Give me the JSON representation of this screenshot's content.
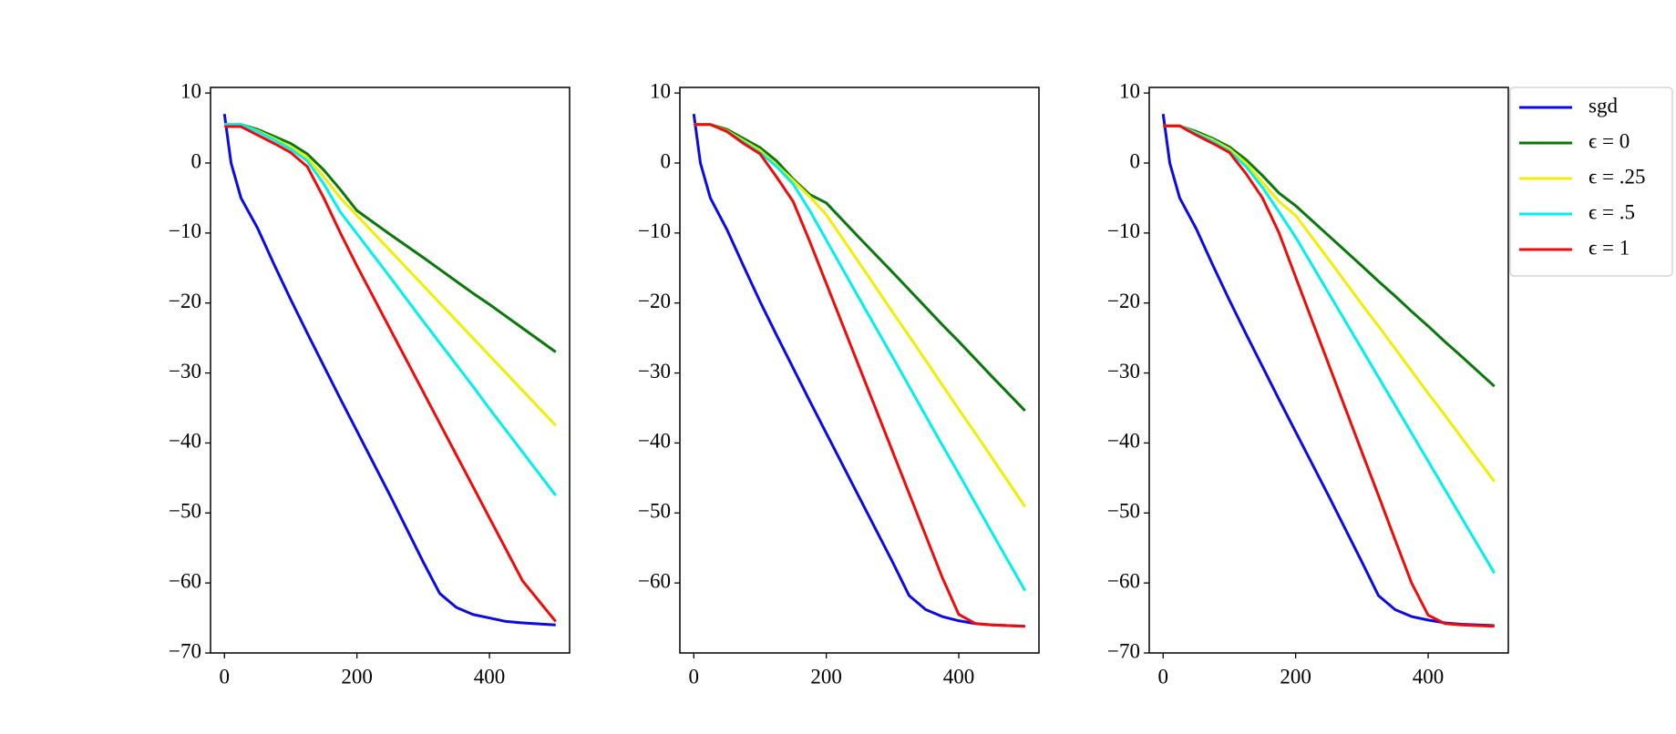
{
  "chart_data": [
    {
      "type": "line",
      "x": [
        0,
        10,
        25,
        50,
        75,
        100,
        125,
        150,
        175,
        200,
        250,
        300,
        325,
        350,
        375,
        400,
        425,
        450,
        500
      ],
      "series": [
        {
          "color": "#0a0ae6",
          "values": [
            7,
            0,
            -5,
            -9.3,
            -14.5,
            -19.5,
            -24.3,
            -29,
            -33.7,
            -38.3,
            -47.5,
            -57,
            -61.5,
            -63.5,
            -64.5,
            -65,
            -65.5,
            -65.7,
            -66
          ]
        },
        {
          "color": "#087808",
          "values": [
            5.5,
            5.5,
            5.5,
            4.8,
            3.8,
            2.8,
            1.3,
            -1,
            -3.8,
            -6.8,
            -10.2,
            -13.5,
            -15.2,
            -16.9,
            -18.6,
            -20.2,
            -21.9,
            -23.6,
            -27
          ]
        },
        {
          "color": "#f2ee00",
          "values": [
            5.5,
            5.5,
            5.5,
            4.6,
            3.5,
            2.3,
            0.8,
            -2,
            -5,
            -7.5,
            -12.5,
            -17.5,
            -20,
            -22.5,
            -25,
            -27.5,
            -30,
            -32.5,
            -37.5
          ]
        },
        {
          "color": "#00f0f0",
          "values": [
            5.5,
            5.5,
            5.5,
            4.5,
            3.3,
            2,
            0.3,
            -3,
            -7,
            -10.1,
            -16.3,
            -22.6,
            -25.7,
            -28.8,
            -31.9,
            -35.1,
            -38.2,
            -41.3,
            -47.5
          ]
        },
        {
          "color": "#f00a0a",
          "values": [
            5.2,
            5.2,
            5.2,
            4,
            2.8,
            1.5,
            -0.5,
            -5,
            -10,
            -14.7,
            -23.7,
            -32.7,
            -37.2,
            -41.7,
            -46.2,
            -50.7,
            -55.2,
            -59.7,
            -65.5
          ]
        }
      ],
      "xlim": [
        -21,
        521
      ],
      "ylim": [
        -70,
        10.8
      ],
      "xticks": [
        0,
        200,
        400
      ],
      "yticks": [
        10,
        0,
        {
          "value": -10,
          "label": "−10"
        },
        {
          "value": -20,
          "label": "−20"
        },
        {
          "value": -30,
          "label": "−30"
        },
        {
          "value": -40,
          "label": "−40"
        },
        {
          "value": -50,
          "label": "−50"
        },
        {
          "value": -60,
          "label": "−60"
        },
        {
          "value": -70,
          "label": "−70"
        }
      ]
    },
    {
      "type": "line",
      "x": [
        0,
        10,
        25,
        50,
        75,
        100,
        125,
        150,
        175,
        200,
        250,
        300,
        325,
        350,
        375,
        400,
        425,
        450,
        500
      ],
      "series": [
        {
          "color": "#0a0ae6",
          "values": [
            7,
            0,
            -5,
            -9.5,
            -14.7,
            -19.8,
            -24.6,
            -29.3,
            -34,
            -38.6,
            -47.8,
            -57,
            -61.8,
            -63.8,
            -64.8,
            -65.4,
            -65.8,
            -66,
            -66.2
          ]
        },
        {
          "color": "#087808",
          "values": [
            5.5,
            5.5,
            5.5,
            4.8,
            3.5,
            2.2,
            0.3,
            -2.3,
            -4.5,
            -5.7,
            -10.7,
            -15.6,
            -18.1,
            -20.6,
            -23.1,
            -25.5,
            -28,
            -30.5,
            -35.4
          ]
        },
        {
          "color": "#f2ee00",
          "values": [
            5.5,
            5.5,
            5.5,
            4.6,
            3.2,
            1.8,
            -0.3,
            -2.5,
            -4.8,
            -7.4,
            -14.3,
            -21.3,
            -24.7,
            -28.2,
            -31.7,
            -35.2,
            -38.6,
            -42.1,
            -49.1
          ]
        },
        {
          "color": "#00f0f0",
          "values": [
            5.5,
            5.5,
            5.5,
            4.5,
            3,
            1.5,
            -0.5,
            -3,
            -6.8,
            -11,
            -19.4,
            -27.7,
            -31.9,
            -36.1,
            -40.3,
            -44.4,
            -48.6,
            -52.8,
            -61.1
          ]
        },
        {
          "color": "#f00a0a",
          "values": [
            5.5,
            5.5,
            5.5,
            4.5,
            2.8,
            1.3,
            -2,
            -5.5,
            -11.2,
            -17.2,
            -29.2,
            -41.2,
            -47.2,
            -53.2,
            -59.2,
            -64.5,
            -65.8,
            -66,
            -66.2
          ]
        }
      ],
      "xlim": [
        -21,
        521
      ],
      "ylim": [
        -70,
        10.8
      ],
      "xticks": [
        0,
        200,
        400
      ],
      "yticks": [
        10,
        0,
        {
          "value": -10,
          "label": "−10"
        },
        {
          "value": -20,
          "label": "−20"
        },
        {
          "value": -30,
          "label": "−30"
        },
        {
          "value": -40,
          "label": "−40"
        },
        {
          "value": -50,
          "label": "−50"
        },
        {
          "value": -60,
          "label": "−60"
        }
      ]
    },
    {
      "type": "line",
      "x": [
        0,
        10,
        25,
        50,
        75,
        100,
        125,
        150,
        175,
        200,
        250,
        300,
        325,
        350,
        375,
        400,
        425,
        450,
        500
      ],
      "series": [
        {
          "name": "sgd",
          "color": "#0a0ae6",
          "values": [
            7,
            0,
            -5,
            -9.4,
            -14.6,
            -19.6,
            -24.4,
            -29.1,
            -33.8,
            -38.4,
            -47.6,
            -57,
            -61.8,
            -63.8,
            -64.8,
            -65.3,
            -65.7,
            -65.9,
            -66.1
          ]
        },
        {
          "name": "ϵ = 0",
          "color": "#087808",
          "values": [
            5.3,
            5.3,
            5.3,
            4.5,
            3.5,
            2.3,
            0.5,
            -1.8,
            -4.3,
            -6.1,
            -10.4,
            -14.7,
            -16.9,
            -19,
            -21.2,
            -23.3,
            -25.5,
            -27.6,
            -31.9
          ]
        },
        {
          "name": "ϵ = .25",
          "color": "#f2ee00",
          "values": [
            5.3,
            5.3,
            5.3,
            4.3,
            3.3,
            2,
            0,
            -2.8,
            -5.5,
            -7.5,
            -13.8,
            -20.2,
            -23.3,
            -26.5,
            -29.7,
            -32.9,
            -36,
            -39.2,
            -45.5
          ]
        },
        {
          "name": "ϵ = .5",
          "color": "#00f0f0",
          "values": [
            5.3,
            5.3,
            5.3,
            4.2,
            3.1,
            1.7,
            -0.5,
            -3.5,
            -7,
            -10.6,
            -18.6,
            -26.6,
            -30.6,
            -34.6,
            -38.6,
            -42.6,
            -46.6,
            -50.6,
            -58.6
          ]
        },
        {
          "name": "ϵ = 1",
          "color": "#f00a0a",
          "values": [
            5.3,
            5.3,
            5.3,
            4,
            2.8,
            1.5,
            -1.5,
            -5,
            -10,
            -16.3,
            -28.8,
            -41.3,
            -47.5,
            -53.8,
            -60,
            -64.6,
            -65.8,
            -66,
            -66.2
          ]
        }
      ],
      "xlim": [
        -21,
        521
      ],
      "ylim": [
        -70,
        10.8
      ],
      "xticks": [
        0,
        200,
        400
      ],
      "yticks": [
        10,
        0,
        {
          "value": -10,
          "label": "−10"
        },
        {
          "value": -20,
          "label": "−20"
        },
        {
          "value": -30,
          "label": "−30"
        },
        {
          "value": -40,
          "label": "−40"
        },
        {
          "value": -50,
          "label": "−50"
        },
        {
          "value": -60,
          "label": "−60"
        },
        {
          "value": -70,
          "label": "−70"
        }
      ],
      "legend": "outside upper right"
    }
  ]
}
